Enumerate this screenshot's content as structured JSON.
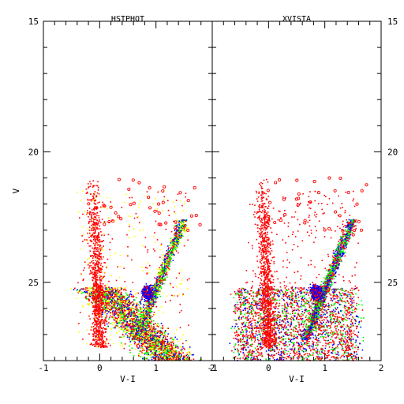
{
  "chart_data": [
    {
      "type": "scatter",
      "title": "HSTPHOT",
      "xlabel": "V-I",
      "ylabel": "V",
      "xlim": [
        -1,
        2
      ],
      "ylim": [
        28,
        15
      ],
      "y_inverted": true,
      "x_ticks": [
        "-1",
        "0",
        "1",
        "2"
      ],
      "y_ticks": [
        "15",
        "20",
        "25"
      ],
      "x_tick_values": [
        -1,
        0,
        1,
        2
      ],
      "y_tick_values": [
        15,
        20,
        25
      ],
      "grid": false,
      "series_colors": [
        "#ff0000",
        "#ffff00",
        "#00ff00",
        "#0000ff"
      ],
      "features": {
        "blue_plume": {
          "x": [
            -0.4,
            0.25
          ],
          "y": [
            21.0,
            28.0
          ],
          "color": "#ff0000"
        },
        "red_giant_branch": {
          "tip": [
            1.55,
            22.6
          ],
          "base": [
            0.6,
            27.5
          ]
        },
        "red_clump": {
          "x": 0.85,
          "y": 25.4
        },
        "lower_main_sequence": {
          "from": [
            0.0,
            26.5
          ],
          "to": [
            1.8,
            28.0
          ]
        }
      },
      "position": "left"
    },
    {
      "type": "scatter",
      "title": "XVISTA",
      "xlabel": "V-I",
      "ylabel": "",
      "xlim": [
        -1,
        2
      ],
      "ylim": [
        28,
        15
      ],
      "y_inverted": true,
      "x_ticks": [
        "-1",
        "0",
        "1",
        "2"
      ],
      "y_ticks": [
        "15",
        "20",
        "25"
      ],
      "x_tick_values": [
        -1,
        0,
        1,
        2
      ],
      "y_tick_values": [
        15,
        20,
        25
      ],
      "grid": false,
      "series_colors": [
        "#ff0000",
        "#00ff00",
        "#0000ff"
      ],
      "features": {
        "blue_plume": {
          "x": [
            -0.4,
            0.3
          ],
          "y": [
            21.0,
            27.5
          ],
          "color": "#ff0000"
        },
        "red_giant_branch": {
          "tip": [
            1.5,
            22.5
          ],
          "base": [
            0.65,
            27.0
          ]
        },
        "red_clump": {
          "x": 0.85,
          "y": 25.4
        }
      },
      "position": "right"
    }
  ]
}
